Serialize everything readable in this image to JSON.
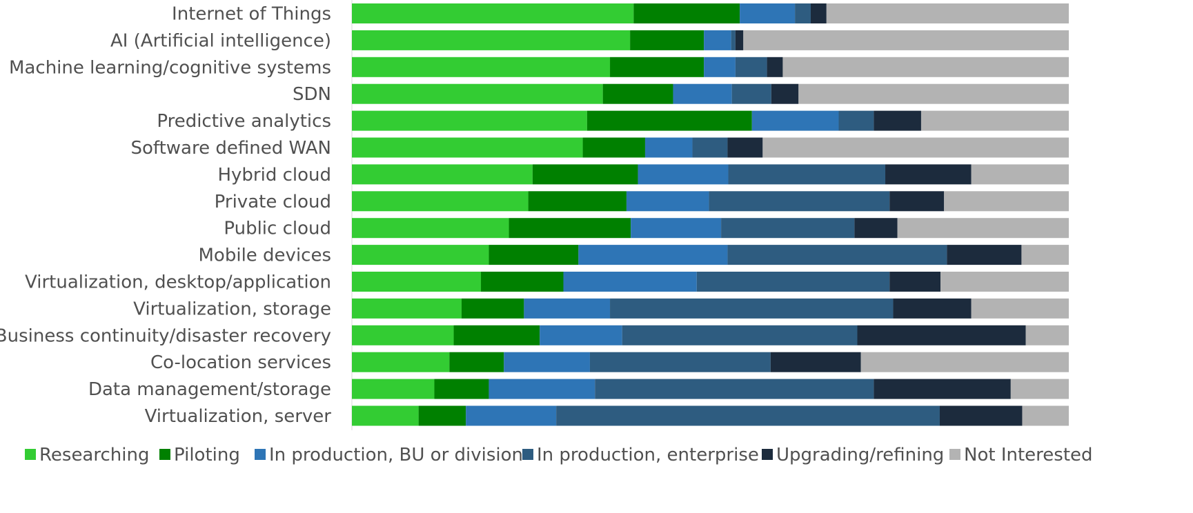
{
  "chart_data": {
    "type": "bar",
    "orientation": "horizontal",
    "stacked": true,
    "normalized": true,
    "title": "",
    "xlabel": "",
    "ylabel": "",
    "xlim": [
      0,
      100
    ],
    "grid": false,
    "legend_position": "bottom",
    "categories": [
      "Internet of Things",
      "AI (Artificial intelligence)",
      "Machine learning/cognitive systems",
      "SDN",
      "Predictive analytics",
      "Software defined WAN",
      "Hybrid cloud",
      "Private cloud",
      "Public cloud ",
      "Mobile devices",
      "Virtualization, desktop/application",
      "Virtualization, storage",
      "Business continuity/disaster recovery",
      "Co-location services",
      "Data management/storage",
      "Virtualization, server"
    ],
    "series": [
      {
        "name": "Researching",
        "color": "#33cc33",
        "values": [
          39.3,
          38.8,
          36.0,
          35.0,
          32.8,
          32.2,
          25.2,
          24.6,
          21.9,
          19.1,
          18.0,
          15.3,
          14.2,
          13.6,
          11.5,
          9.3
        ]
      },
      {
        "name": "Piloting",
        "color": "#008000",
        "values": [
          14.8,
          10.3,
          13.1,
          9.8,
          23.0,
          8.7,
          14.7,
          13.7,
          17.0,
          12.5,
          11.5,
          8.7,
          12.0,
          7.6,
          7.6,
          6.6
        ]
      },
      {
        "name": "In production, BU or division",
        "color": "#2e75b6",
        "values": [
          7.7,
          3.8,
          4.4,
          8.2,
          12.1,
          6.6,
          12.6,
          11.5,
          12.6,
          20.8,
          18.6,
          12.0,
          11.5,
          12.0,
          14.8,
          12.6
        ]
      },
      {
        "name": "In production, enterprise",
        "color": "#2e5c80",
        "values": [
          2.2,
          0.6,
          4.4,
          5.5,
          4.9,
          4.9,
          21.9,
          25.2,
          18.6,
          30.6,
          26.9,
          39.5,
          32.8,
          25.2,
          38.9,
          53.5
        ]
      },
      {
        "name": "Upgrading/refining",
        "color": "#1c2b3d",
        "values": [
          2.2,
          1.1,
          2.2,
          3.8,
          6.6,
          4.9,
          12.0,
          7.6,
          6.0,
          10.4,
          7.1,
          10.9,
          23.5,
          12.6,
          19.1,
          11.5
        ]
      },
      {
        "name": "Not Interested",
        "color": "#b3b3b3",
        "values": [
          33.8,
          45.4,
          39.9,
          37.7,
          20.6,
          42.7,
          13.6,
          17.4,
          23.9,
          6.6,
          17.9,
          13.6,
          6.0,
          29.0,
          8.1,
          6.5
        ]
      }
    ]
  }
}
